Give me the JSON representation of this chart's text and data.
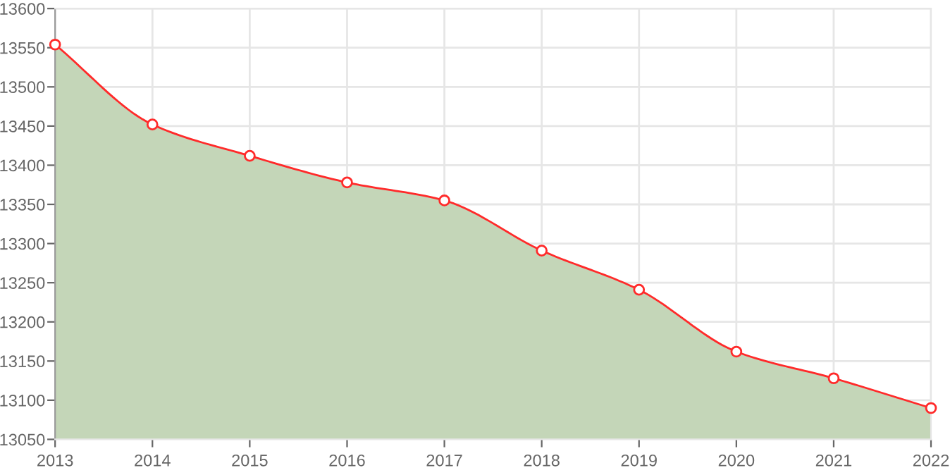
{
  "chart_data": {
    "type": "area",
    "categories": [
      "2013",
      "2014",
      "2015",
      "2016",
      "2017",
      "2018",
      "2019",
      "2020",
      "2021",
      "2022"
    ],
    "series": [
      {
        "color": "#ff2a2a",
        "values": [
          13554,
          13452,
          13412,
          13378,
          13355,
          13291,
          13241,
          13162,
          13128,
          13090
        ]
      }
    ],
    "ylim": [
      13050,
      13600
    ],
    "yticks": [
      13050,
      13100,
      13150,
      13200,
      13250,
      13300,
      13350,
      13400,
      13450,
      13500,
      13550,
      13600
    ],
    "grid": true,
    "marker": "circle",
    "line_style": "solid",
    "legend": false
  }
}
